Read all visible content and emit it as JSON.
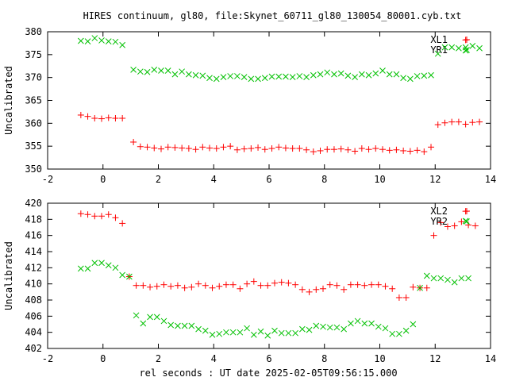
{
  "title": "HIRES continuum, gl80, file:Skynet_60711_gl80_130054_80001.cyb.txt",
  "xlabel": "rel seconds : UT date 2025-02-05T09:56:15.000",
  "colors": {
    "red": "#ff0000",
    "green": "#00c000",
    "axis": "#000000"
  },
  "chart_data": [
    {
      "type": "scatter",
      "title": "HIRES continuum, gl80, file:Skynet_60711_gl80_130054_80001.cyb.txt",
      "xlabel": "",
      "ylabel": "Uncalibrated",
      "xlim": [
        -2,
        14
      ],
      "ylim": [
        350,
        380
      ],
      "xticks": [
        -2,
        0,
        2,
        4,
        6,
        8,
        10,
        12,
        14
      ],
      "yticks": [
        350,
        355,
        360,
        365,
        370,
        375,
        380
      ],
      "legend_position": "top-right",
      "grid": false,
      "series": [
        {
          "name": "XL1",
          "marker": "plus",
          "color": "#ff0000",
          "points": [
            [
              -0.8,
              361.8
            ],
            [
              -0.55,
              361.5
            ],
            [
              -0.3,
              361.1
            ],
            [
              -0.05,
              361.0
            ],
            [
              0.2,
              361.2
            ],
            [
              0.45,
              361.1
            ],
            [
              0.7,
              361.1
            ],
            [
              1.1,
              355.9
            ],
            [
              1.35,
              354.9
            ],
            [
              1.6,
              354.8
            ],
            [
              1.85,
              354.6
            ],
            [
              2.1,
              354.4
            ],
            [
              2.35,
              354.8
            ],
            [
              2.6,
              354.7
            ],
            [
              2.85,
              354.6
            ],
            [
              3.1,
              354.5
            ],
            [
              3.35,
              354.3
            ],
            [
              3.6,
              354.8
            ],
            [
              3.85,
              354.6
            ],
            [
              4.1,
              354.5
            ],
            [
              4.35,
              354.8
            ],
            [
              4.6,
              355.0
            ],
            [
              4.85,
              354.2
            ],
            [
              5.1,
              354.4
            ],
            [
              5.35,
              354.5
            ],
            [
              5.6,
              354.7
            ],
            [
              5.85,
              354.3
            ],
            [
              6.1,
              354.5
            ],
            [
              6.35,
              354.8
            ],
            [
              6.6,
              354.6
            ],
            [
              6.85,
              354.5
            ],
            [
              7.1,
              354.5
            ],
            [
              7.35,
              354.2
            ],
            [
              7.6,
              353.8
            ],
            [
              7.85,
              354.0
            ],
            [
              8.1,
              354.3
            ],
            [
              8.35,
              354.3
            ],
            [
              8.6,
              354.4
            ],
            [
              8.85,
              354.2
            ],
            [
              9.1,
              353.9
            ],
            [
              9.35,
              354.5
            ],
            [
              9.6,
              354.3
            ],
            [
              9.85,
              354.5
            ],
            [
              10.1,
              354.3
            ],
            [
              10.35,
              354.1
            ],
            [
              10.6,
              354.2
            ],
            [
              10.85,
              354.0
            ],
            [
              11.1,
              353.9
            ],
            [
              11.35,
              354.1
            ],
            [
              11.6,
              353.8
            ],
            [
              11.85,
              354.8
            ],
            [
              12.1,
              359.7
            ],
            [
              12.35,
              360.1
            ],
            [
              12.6,
              360.3
            ],
            [
              12.85,
              360.3
            ],
            [
              13.1,
              359.8
            ],
            [
              13.35,
              360.2
            ],
            [
              13.6,
              360.3
            ],
            [
              13.1,
              378.2
            ]
          ]
        },
        {
          "name": "YR1",
          "marker": "cross",
          "color": "#00c000",
          "points": [
            [
              -0.8,
              378.0
            ],
            [
              -0.55,
              377.9
            ],
            [
              -0.3,
              378.6
            ],
            [
              -0.05,
              378.1
            ],
            [
              0.2,
              377.9
            ],
            [
              0.45,
              377.8
            ],
            [
              0.7,
              377.1
            ],
            [
              1.1,
              371.7
            ],
            [
              1.35,
              371.3
            ],
            [
              1.6,
              371.2
            ],
            [
              1.85,
              371.7
            ],
            [
              2.1,
              371.5
            ],
            [
              2.35,
              371.5
            ],
            [
              2.6,
              370.7
            ],
            [
              2.85,
              371.3
            ],
            [
              3.1,
              370.7
            ],
            [
              3.35,
              370.5
            ],
            [
              3.6,
              370.4
            ],
            [
              3.85,
              369.9
            ],
            [
              4.1,
              369.7
            ],
            [
              4.35,
              370.1
            ],
            [
              4.6,
              370.3
            ],
            [
              4.85,
              370.3
            ],
            [
              5.1,
              370.1
            ],
            [
              5.35,
              369.7
            ],
            [
              5.6,
              369.7
            ],
            [
              5.85,
              369.9
            ],
            [
              6.1,
              370.2
            ],
            [
              6.35,
              370.2
            ],
            [
              6.6,
              370.2
            ],
            [
              6.85,
              370.1
            ],
            [
              7.1,
              370.3
            ],
            [
              7.35,
              370.1
            ],
            [
              7.6,
              370.5
            ],
            [
              7.85,
              370.7
            ],
            [
              8.1,
              371.1
            ],
            [
              8.35,
              370.7
            ],
            [
              8.6,
              370.9
            ],
            [
              8.85,
              370.4
            ],
            [
              9.1,
              370.1
            ],
            [
              9.35,
              370.7
            ],
            [
              9.6,
              370.5
            ],
            [
              9.85,
              370.9
            ],
            [
              10.1,
              371.5
            ],
            [
              10.35,
              370.7
            ],
            [
              10.6,
              370.7
            ],
            [
              10.85,
              369.9
            ],
            [
              11.1,
              369.7
            ],
            [
              11.35,
              370.3
            ],
            [
              11.6,
              370.4
            ],
            [
              11.85,
              370.5
            ],
            [
              12.1,
              375.2
            ],
            [
              12.35,
              376.6
            ],
            [
              12.6,
              376.6
            ],
            [
              12.85,
              376.4
            ],
            [
              13.1,
              376.6
            ],
            [
              13.35,
              376.9
            ],
            [
              13.6,
              376.4
            ],
            [
              13.1,
              375.9
            ]
          ]
        }
      ]
    },
    {
      "type": "scatter",
      "title": "",
      "xlabel": "rel seconds : UT date 2025-02-05T09:56:15.000",
      "ylabel": "Uncalibrated",
      "xlim": [
        -2,
        14
      ],
      "ylim": [
        402,
        420
      ],
      "xticks": [
        -2,
        0,
        2,
        4,
        6,
        8,
        10,
        12,
        14
      ],
      "yticks": [
        402,
        404,
        406,
        408,
        410,
        412,
        414,
        416,
        418,
        420
      ],
      "legend_position": "top-right",
      "grid": false,
      "series": [
        {
          "name": "XL2",
          "marker": "plus",
          "color": "#ff0000",
          "points": [
            [
              -0.8,
              418.7
            ],
            [
              -0.55,
              418.6
            ],
            [
              -0.3,
              418.4
            ],
            [
              -0.05,
              418.4
            ],
            [
              0.2,
              418.6
            ],
            [
              0.45,
              418.2
            ],
            [
              0.7,
              417.5
            ],
            [
              0.95,
              410.9
            ],
            [
              1.2,
              409.8
            ],
            [
              1.45,
              409.8
            ],
            [
              1.7,
              409.6
            ],
            [
              1.95,
              409.7
            ],
            [
              2.2,
              409.9
            ],
            [
              2.45,
              409.7
            ],
            [
              2.7,
              409.8
            ],
            [
              2.95,
              409.5
            ],
            [
              3.2,
              409.6
            ],
            [
              3.45,
              410.0
            ],
            [
              3.7,
              409.8
            ],
            [
              3.95,
              409.5
            ],
            [
              4.2,
              409.7
            ],
            [
              4.45,
              409.9
            ],
            [
              4.7,
              409.9
            ],
            [
              4.95,
              409.4
            ],
            [
              5.2,
              410.0
            ],
            [
              5.45,
              410.3
            ],
            [
              5.7,
              409.8
            ],
            [
              5.95,
              409.8
            ],
            [
              6.2,
              410.1
            ],
            [
              6.45,
              410.2
            ],
            [
              6.7,
              410.1
            ],
            [
              6.95,
              409.9
            ],
            [
              7.2,
              409.3
            ],
            [
              7.45,
              409.0
            ],
            [
              7.7,
              409.3
            ],
            [
              7.95,
              409.4
            ],
            [
              8.2,
              409.9
            ],
            [
              8.45,
              409.8
            ],
            [
              8.7,
              409.3
            ],
            [
              8.95,
              409.9
            ],
            [
              9.2,
              409.9
            ],
            [
              9.45,
              409.8
            ],
            [
              9.7,
              409.9
            ],
            [
              9.95,
              409.9
            ],
            [
              10.2,
              409.7
            ],
            [
              10.45,
              409.4
            ],
            [
              10.7,
              408.3
            ],
            [
              10.95,
              408.3
            ],
            [
              11.2,
              409.6
            ],
            [
              11.45,
              409.5
            ],
            [
              11.7,
              409.5
            ],
            [
              11.95,
              416.0
            ],
            [
              12.2,
              417.6
            ],
            [
              12.45,
              417.1
            ],
            [
              12.7,
              417.2
            ],
            [
              12.95,
              417.7
            ],
            [
              13.2,
              417.3
            ],
            [
              13.45,
              417.2
            ],
            [
              13.1,
              419.0
            ]
          ]
        },
        {
          "name": "YR2",
          "marker": "cross",
          "color": "#00c000",
          "points": [
            [
              -0.8,
              411.9
            ],
            [
              -0.55,
              411.9
            ],
            [
              -0.3,
              412.6
            ],
            [
              -0.05,
              412.6
            ],
            [
              0.2,
              412.3
            ],
            [
              0.45,
              412.0
            ],
            [
              0.7,
              411.1
            ],
            [
              0.95,
              410.9
            ],
            [
              1.2,
              406.1
            ],
            [
              1.45,
              405.1
            ],
            [
              1.7,
              405.9
            ],
            [
              1.95,
              405.9
            ],
            [
              2.2,
              405.4
            ],
            [
              2.45,
              404.9
            ],
            [
              2.7,
              404.8
            ],
            [
              2.95,
              404.8
            ],
            [
              3.2,
              404.8
            ],
            [
              3.45,
              404.4
            ],
            [
              3.7,
              404.2
            ],
            [
              3.95,
              403.7
            ],
            [
              4.2,
              403.8
            ],
            [
              4.45,
              404.0
            ],
            [
              4.7,
              404.0
            ],
            [
              4.95,
              404.0
            ],
            [
              5.2,
              404.5
            ],
            [
              5.45,
              403.7
            ],
            [
              5.7,
              404.1
            ],
            [
              5.95,
              403.6
            ],
            [
              6.2,
              404.2
            ],
            [
              6.45,
              403.9
            ],
            [
              6.7,
              403.9
            ],
            [
              6.95,
              403.9
            ],
            [
              7.2,
              404.4
            ],
            [
              7.45,
              404.3
            ],
            [
              7.7,
              404.8
            ],
            [
              7.95,
              404.7
            ],
            [
              8.2,
              404.6
            ],
            [
              8.45,
              404.6
            ],
            [
              8.7,
              404.4
            ],
            [
              8.95,
              405.1
            ],
            [
              9.2,
              405.4
            ],
            [
              9.45,
              405.1
            ],
            [
              9.7,
              405.1
            ],
            [
              9.95,
              404.7
            ],
            [
              10.2,
              404.5
            ],
            [
              10.45,
              403.8
            ],
            [
              10.7,
              403.8
            ],
            [
              10.95,
              404.2
            ],
            [
              11.2,
              405.0
            ],
            [
              11.45,
              409.5
            ],
            [
              11.7,
              411.0
            ],
            [
              11.95,
              410.7
            ],
            [
              12.2,
              410.7
            ],
            [
              12.45,
              410.5
            ],
            [
              12.7,
              410.2
            ],
            [
              12.95,
              410.7
            ],
            [
              13.2,
              410.7
            ],
            [
              13.1,
              417.8
            ]
          ]
        }
      ]
    }
  ]
}
